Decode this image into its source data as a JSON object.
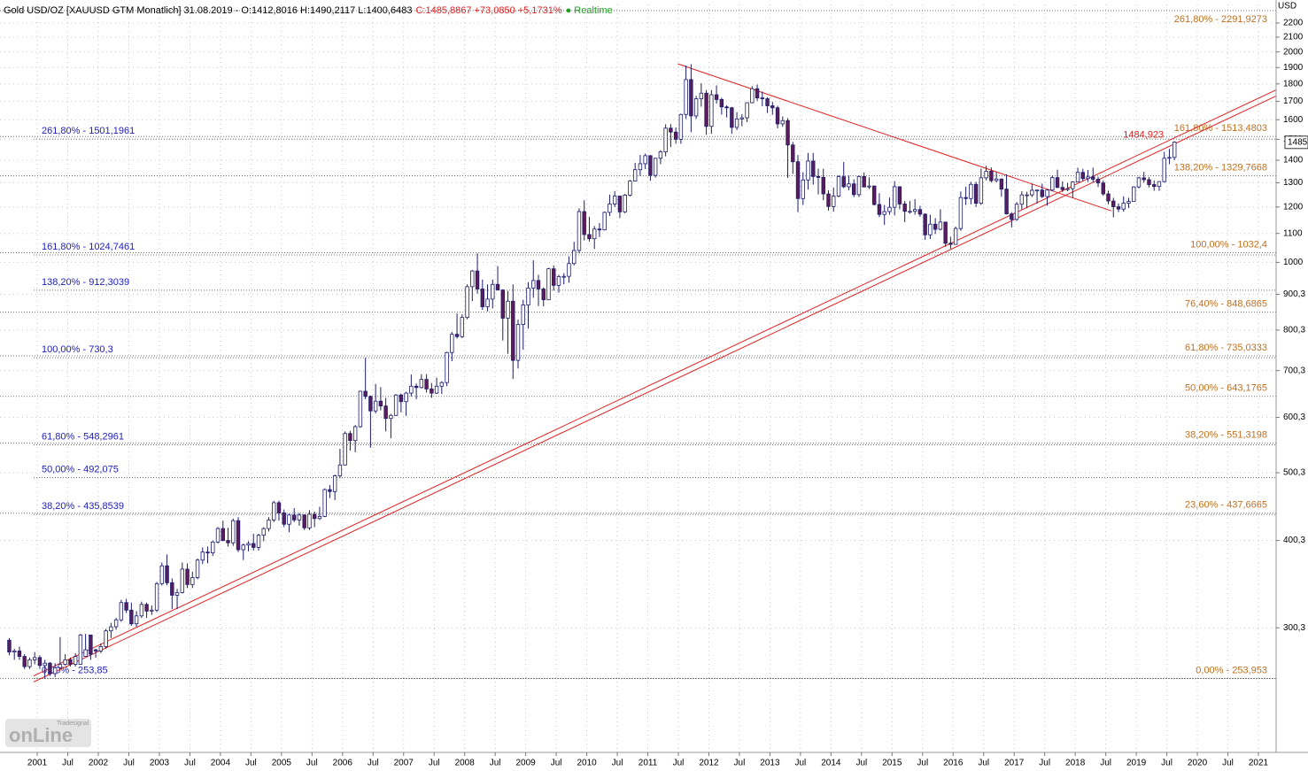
{
  "chart_data": {
    "type": "candlestick",
    "header": {
      "instrument": "Gold USD/OZ [XAUUSD GTM Monatlich] 31.08.2019 - O:1412,8016 H:1490,2117 L:1400,6483",
      "change": "C:1485,8867 +73,0850 +5,1731%",
      "status": "Realtime"
    },
    "y_axis_label": "USD",
    "logo": {
      "brand": "Tradesignal",
      "name": "onLine"
    },
    "log_scale": true,
    "grid": true,
    "up_color": "#ffffff",
    "down_color": "#5c1c5c",
    "wick_color": "#1c1c6c",
    "fib_left_color": "#2020c0",
    "fib_right_color": "#c07020",
    "trend_color": "#e02020",
    "ylim": [
      199,
      2339
    ],
    "yticks": [
      {
        "value": 300,
        "label": "300,3"
      },
      {
        "value": 400,
        "label": "400,3"
      },
      {
        "value": 500,
        "label": "500,3"
      },
      {
        "value": 600,
        "label": "600,3"
      },
      {
        "value": 700,
        "label": "700,3"
      },
      {
        "value": 800,
        "label": "800,3"
      },
      {
        "value": 900,
        "label": "900,3"
      },
      1000,
      1100,
      1200,
      1300,
      1400,
      1500,
      1600,
      1700,
      1800,
      1900,
      2000,
      2100,
      2200
    ],
    "xlim": [
      2000.39,
      2021.29
    ],
    "xticks": [
      2001,
      {
        "value": 2001.5,
        "label": "Jul"
      },
      2002,
      {
        "value": 2002.5,
        "label": "Jul"
      },
      2003,
      {
        "value": 2003.5,
        "label": "Jul"
      },
      2004,
      {
        "value": 2004.5,
        "label": "Jul"
      },
      2005,
      {
        "value": 2005.5,
        "label": "Jul"
      },
      2006,
      {
        "value": 2006.5,
        "label": "Jul"
      },
      2007,
      {
        "value": 2007.5,
        "label": "Jul"
      },
      2008,
      {
        "value": 2008.5,
        "label": "Jul"
      },
      2009,
      {
        "value": 2009.5,
        "label": "Jul"
      },
      2010,
      {
        "value": 2010.5,
        "label": "Jul"
      },
      2011,
      {
        "value": 2011.5,
        "label": "Jul"
      },
      2012,
      {
        "value": 2012.5,
        "label": "Jul"
      },
      2013,
      {
        "value": 2013.5,
        "label": "Jul"
      },
      2014,
      {
        "value": 2014.5,
        "label": "Jul"
      },
      2015,
      {
        "value": 2015.5,
        "label": "Jul"
      },
      2016,
      {
        "value": 2016.5,
        "label": "Jul"
      },
      2017,
      {
        "value": 2017.5,
        "label": "Jul"
      },
      2018,
      {
        "value": 2018.5,
        "label": "Jul"
      },
      2019,
      {
        "value": 2019.5,
        "label": "Jul"
      },
      2020,
      {
        "value": 2020.5,
        "label": "Jul"
      },
      2021
    ],
    "x": [
      "2000-07",
      "2000-08",
      "2000-09",
      "2000-10",
      "2000-11",
      "2000-12",
      "2001-01",
      "2001-02",
      "2001-03",
      "2001-04",
      "2001-05",
      "2001-06",
      "2001-07",
      "2001-08",
      "2001-09",
      "2001-10",
      "2001-11",
      "2001-12",
      "2002-01",
      "2002-02",
      "2002-03",
      "2002-04",
      "2002-05",
      "2002-06",
      "2002-07",
      "2002-08",
      "2002-09",
      "2002-10",
      "2002-11",
      "2002-12",
      "2003-01",
      "2003-02",
      "2003-03",
      "2003-04",
      "2003-05",
      "2003-06",
      "2003-07",
      "2003-08",
      "2003-09",
      "2003-10",
      "2003-11",
      "2003-12",
      "2004-01",
      "2004-02",
      "2004-03",
      "2004-04",
      "2004-05",
      "2004-06",
      "2004-07",
      "2004-08",
      "2004-09",
      "2004-10",
      "2004-11",
      "2004-12",
      "2005-01",
      "2005-02",
      "2005-03",
      "2005-04",
      "2005-05",
      "2005-06",
      "2005-07",
      "2005-08",
      "2005-09",
      "2005-10",
      "2005-11",
      "2005-12",
      "2006-01",
      "2006-02",
      "2006-03",
      "2006-04",
      "2006-05",
      "2006-06",
      "2006-07",
      "2006-08",
      "2006-09",
      "2006-10",
      "2006-11",
      "2006-12",
      "2007-01",
      "2007-02",
      "2007-03",
      "2007-04",
      "2007-05",
      "2007-06",
      "2007-07",
      "2007-08",
      "2007-09",
      "2007-10",
      "2007-11",
      "2007-12",
      "2008-01",
      "2008-02",
      "2008-03",
      "2008-04",
      "2008-05",
      "2008-06",
      "2008-07",
      "2008-08",
      "2008-09",
      "2008-10",
      "2008-11",
      "2008-12",
      "2009-01",
      "2009-02",
      "2009-03",
      "2009-04",
      "2009-05",
      "2009-06",
      "2009-07",
      "2009-08",
      "2009-09",
      "2009-10",
      "2009-11",
      "2009-12",
      "2010-01",
      "2010-02",
      "2010-03",
      "2010-04",
      "2010-05",
      "2010-06",
      "2010-07",
      "2010-08",
      "2010-09",
      "2010-10",
      "2010-11",
      "2010-12",
      "2011-01",
      "2011-02",
      "2011-03",
      "2011-04",
      "2011-05",
      "2011-06",
      "2011-07",
      "2011-08",
      "2011-09",
      "2011-10",
      "2011-11",
      "2011-12",
      "2012-01",
      "2012-02",
      "2012-03",
      "2012-04",
      "2012-05",
      "2012-06",
      "2012-07",
      "2012-08",
      "2012-09",
      "2012-10",
      "2012-11",
      "2012-12",
      "2013-01",
      "2013-02",
      "2013-03",
      "2013-04",
      "2013-05",
      "2013-06",
      "2013-07",
      "2013-08",
      "2013-09",
      "2013-10",
      "2013-11",
      "2013-12",
      "2014-01",
      "2014-02",
      "2014-03",
      "2014-04",
      "2014-05",
      "2014-06",
      "2014-07",
      "2014-08",
      "2014-09",
      "2014-10",
      "2014-11",
      "2014-12",
      "2015-01",
      "2015-02",
      "2015-03",
      "2015-04",
      "2015-05",
      "2015-06",
      "2015-07",
      "2015-08",
      "2015-09",
      "2015-10",
      "2015-11",
      "2015-12",
      "2016-01",
      "2016-02",
      "2016-03",
      "2016-04",
      "2016-05",
      "2016-06",
      "2016-07",
      "2016-08",
      "2016-09",
      "2016-10",
      "2016-11",
      "2016-12",
      "2017-01",
      "2017-02",
      "2017-03",
      "2017-04",
      "2017-05",
      "2017-06",
      "2017-07",
      "2017-08",
      "2017-09",
      "2017-10",
      "2017-11",
      "2017-12",
      "2018-01",
      "2018-02",
      "2018-03",
      "2018-04",
      "2018-05",
      "2018-06",
      "2018-07",
      "2018-08",
      "2018-09",
      "2018-10",
      "2018-11",
      "2018-12",
      "2019-01",
      "2019-02",
      "2019-03",
      "2019-04",
      "2019-05",
      "2019-06",
      "2019-07",
      "2019-08"
    ],
    "open": [
      288,
      277,
      278,
      273,
      264,
      270,
      272,
      265,
      267,
      258,
      263,
      266,
      270,
      266,
      266,
      273,
      293,
      279,
      278,
      282,
      297,
      301,
      308,
      326,
      318,
      304,
      312,
      324,
      317,
      318,
      347,
      368,
      348,
      334,
      337,
      364,
      346,
      354,
      375,
      385,
      384,
      398,
      416,
      400,
      397,
      427,
      388,
      394,
      396,
      391,
      407,
      416,
      428,
      453,
      438,
      422,
      435,
      428,
      435,
      417,
      436,
      430,
      433,
      473,
      470,
      495,
      513,
      569,
      556,
      582,
      654,
      643,
      613,
      633,
      623,
      598,
      604,
      646,
      632,
      650,
      665,
      662,
      680,
      659,
      650,
      665,
      673,
      743,
      789,
      783,
      834,
      923,
      972,
      916,
      864,
      886,
      930,
      913,
      832,
      880,
      724,
      815,
      869,
      919,
      942,
      916,
      884,
      979,
      927,
      954,
      955,
      996,
      1040,
      1182,
      1096,
      1081,
      1116,
      1113,
      1179,
      1212,
      1244,
      1181,
      1248,
      1307,
      1357,
      1384,
      1421,
      1332,
      1409,
      1439,
      1556,
      1536,
      1500,
      1628,
      1826,
      1620,
      1714,
      1746,
      1565,
      1737,
      1710,
      1669,
      1664,
      1560,
      1604,
      1610,
      1692,
      1772,
      1719,
      1714,
      1675,
      1664,
      1578,
      1595,
      1472,
      1393,
      1234,
      1312,
      1396,
      1327,
      1323,
      1253,
      1202,
      1244,
      1326,
      1283,
      1295,
      1250,
      1327,
      1282,
      1286,
      1210,
      1171,
      1182,
      1199,
      1283,
      1212,
      1183,
      1183,
      1190,
      1172,
      1095,
      1134,
      1115,
      1142,
      1065,
      1061,
      1118,
      1238,
      1234,
      1293,
      1215,
      1321,
      1350,
      1309,
      1316,
      1273,
      1173,
      1152,
      1211,
      1249,
      1249,
      1268,
      1269,
      1242,
      1269,
      1322,
      1280,
      1271,
      1275,
      1303,
      1345,
      1318,
      1325,
      1315,
      1299,
      1253,
      1224,
      1201,
      1192,
      1215,
      1222,
      1282,
      1321,
      1313,
      1292,
      1284,
      1305,
      1409,
      1412.8
    ],
    "high": [
      290,
      280,
      282,
      275,
      272,
      277,
      274,
      270,
      268,
      267,
      291,
      275,
      272,
      276,
      294,
      294,
      280,
      280,
      285,
      299,
      305,
      310,
      329,
      330,
      326,
      317,
      327,
      326,
      323,
      349,
      372,
      382,
      353,
      341,
      372,
      371,
      361,
      377,
      391,
      392,
      400,
      418,
      427,
      417,
      430,
      432,
      396,
      399,
      409,
      409,
      418,
      432,
      456,
      456,
      443,
      437,
      445,
      438,
      436,
      442,
      440,
      447,
      475,
      480,
      497,
      541,
      573,
      574,
      585,
      655,
      730,
      645,
      670,
      663,
      640,
      607,
      648,
      649,
      653,
      691,
      671,
      692,
      692,
      672,
      684,
      676,
      745,
      795,
      845,
      843,
      930,
      975,
      1030,
      945,
      930,
      945,
      988,
      915,
      910,
      930,
      828,
      884,
      937,
      1007,
      960,
      921,
      982,
      990,
      960,
      965,
      1020,
      1070,
      1195,
      1227,
      1162,
      1127,
      1138,
      1182,
      1250,
      1265,
      1245,
      1253,
      1312,
      1388,
      1424,
      1431,
      1424,
      1411,
      1447,
      1576,
      1577,
      1560,
      1632,
      1913,
      1921,
      1730,
      1804,
      1764,
      1764,
      1791,
      1720,
      1677,
      1669,
      1640,
      1630,
      1693,
      1787,
      1796,
      1755,
      1723,
      1697,
      1675,
      1617,
      1608,
      1487,
      1424,
      1346,
      1434,
      1434,
      1362,
      1361,
      1268,
      1280,
      1332,
      1392,
      1331,
      1315,
      1332,
      1345,
      1323,
      1288,
      1256,
      1208,
      1238,
      1307,
      1283,
      1224,
      1224,
      1232,
      1205,
      1175,
      1170,
      1157,
      1191,
      1143,
      1088,
      1125,
      1263,
      1283,
      1304,
      1304,
      1362,
      1375,
      1367,
      1345,
      1318,
      1337,
      1180,
      1220,
      1264,
      1262,
      1295,
      1270,
      1296,
      1272,
      1331,
      1357,
      1306,
      1299,
      1307,
      1366,
      1361,
      1356,
      1366,
      1326,
      1310,
      1266,
      1237,
      1214,
      1243,
      1237,
      1285,
      1326,
      1347,
      1324,
      1310,
      1306,
      1439,
      1453,
      1490.2
    ],
    "low": [
      274,
      270,
      270,
      262,
      262,
      266,
      262,
      254,
      256,
      255,
      262,
      265,
      264,
      264,
      271,
      277,
      270,
      272,
      276,
      280,
      290,
      298,
      306,
      315,
      302,
      301,
      310,
      310,
      313,
      316,
      345,
      345,
      319,
      319,
      336,
      342,
      342,
      352,
      370,
      371,
      380,
      396,
      399,
      392,
      393,
      385,
      375,
      386,
      387,
      387,
      399,
      412,
      425,
      427,
      418,
      411,
      425,
      420,
      414,
      414,
      418,
      428,
      432,
      460,
      457,
      491,
      512,
      538,
      535,
      580,
      637,
      543,
      608,
      614,
      573,
      560,
      603,
      610,
      603,
      643,
      637,
      660,
      651,
      640,
      648,
      648,
      665,
      722,
      778,
      779,
      829,
      880,
      902,
      855,
      851,
      859,
      912,
      773,
      740,
      681,
      705,
      750,
      804,
      890,
      866,
      865,
      883,
      911,
      905,
      930,
      935,
      990,
      1030,
      1075,
      1071,
      1045,
      1087,
      1111,
      1165,
      1200,
      1157,
      1176,
      1243,
      1305,
      1330,
      1360,
      1308,
      1322,
      1382,
      1418,
      1462,
      1478,
      1478,
      1604,
      1535,
      1604,
      1670,
      1522,
      1527,
      1687,
      1627,
      1612,
      1527,
      1546,
      1565,
      1587,
      1689,
      1702,
      1672,
      1636,
      1626,
      1555,
      1563,
      1321,
      1338,
      1180,
      1208,
      1271,
      1292,
      1251,
      1227,
      1186,
      1182,
      1239,
      1277,
      1268,
      1240,
      1240,
      1280,
      1273,
      1206,
      1161,
      1131,
      1170,
      1167,
      1191,
      1142,
      1174,
      1170,
      1162,
      1077,
      1080,
      1098,
      1111,
      1053,
      1046,
      1060,
      1110,
      1208,
      1211,
      1200,
      1208,
      1310,
      1301,
      1302,
      1241,
      1171,
      1122,
      1146,
      1191,
      1195,
      1240,
      1214,
      1236,
      1205,
      1264,
      1277,
      1261,
      1264,
      1236,
      1302,
      1307,
      1303,
      1302,
      1282,
      1245,
      1211,
      1160,
      1180,
      1182,
      1196,
      1221,
      1276,
      1300,
      1280,
      1266,
      1266,
      1301,
      1382,
      1400.6
    ],
    "close": [
      277,
      278,
      273,
      264,
      270,
      272,
      265,
      267,
      258,
      263,
      266,
      270,
      266,
      273,
      293,
      279,
      275,
      278,
      282,
      297,
      301,
      308,
      326,
      318,
      304,
      312,
      324,
      317,
      318,
      347,
      368,
      348,
      334,
      337,
      364,
      346,
      354,
      375,
      385,
      384,
      398,
      416,
      400,
      397,
      427,
      388,
      394,
      396,
      391,
      407,
      416,
      428,
      453,
      438,
      422,
      435,
      428,
      435,
      417,
      436,
      430,
      433,
      473,
      470,
      495,
      513,
      569,
      556,
      582,
      654,
      643,
      613,
      633,
      623,
      598,
      604,
      646,
      632,
      650,
      665,
      662,
      680,
      659,
      650,
      665,
      673,
      743,
      789,
      783,
      834,
      923,
      972,
      916,
      864,
      886,
      930,
      913,
      832,
      880,
      724,
      815,
      869,
      919,
      942,
      916,
      884,
      979,
      927,
      954,
      955,
      996,
      1040,
      1182,
      1096,
      1081,
      1116,
      1113,
      1179,
      1212,
      1244,
      1181,
      1248,
      1307,
      1357,
      1384,
      1421,
      1332,
      1409,
      1439,
      1556,
      1536,
      1500,
      1628,
      1826,
      1620,
      1714,
      1746,
      1565,
      1737,
      1710,
      1669,
      1664,
      1560,
      1604,
      1610,
      1692,
      1772,
      1719,
      1714,
      1675,
      1664,
      1578,
      1595,
      1472,
      1393,
      1234,
      1312,
      1396,
      1327,
      1323,
      1253,
      1202,
      1244,
      1326,
      1283,
      1295,
      1250,
      1327,
      1282,
      1286,
      1210,
      1171,
      1182,
      1199,
      1283,
      1212,
      1183,
      1183,
      1190,
      1172,
      1095,
      1134,
      1115,
      1142,
      1065,
      1061,
      1118,
      1238,
      1234,
      1293,
      1215,
      1321,
      1350,
      1309,
      1316,
      1273,
      1173,
      1152,
      1211,
      1249,
      1249,
      1268,
      1269,
      1242,
      1269,
      1322,
      1280,
      1271,
      1275,
      1303,
      1345,
      1318,
      1325,
      1315,
      1299,
      1253,
      1224,
      1201,
      1192,
      1215,
      1222,
      1282,
      1321,
      1313,
      1292,
      1284,
      1305,
      1409,
      1413,
      1485.9
    ],
    "fib_left": [
      {
        "value": 1501.1961,
        "label": "261,80% - 1501,1961"
      },
      {
        "value": 1024.7461,
        "label": "161,80% - 1024,7461"
      },
      {
        "value": 912.3039,
        "label": "138,20% - 912,3039"
      },
      {
        "value": 730.3,
        "label": "100,00% - 730,3"
      },
      {
        "value": 548.2961,
        "label": "61,80% - 548,2961"
      },
      {
        "value": 492.075,
        "label": "50,00% - 492,075"
      },
      {
        "value": 435.8539,
        "label": "38,20% - 435,8539"
      },
      {
        "value": 253.85,
        "label": "0,00% - 253,85"
      }
    ],
    "fib_right": [
      {
        "value": 2291.9273,
        "label": "261,80% - 2291,9273"
      },
      {
        "value": 1513.4803,
        "label": "161,80% - 1513,4803"
      },
      {
        "value": 1329.7668,
        "label": "138,20% - 1329,7668"
      },
      {
        "value": 1032.4,
        "label": "100,00% - 1032,4"
      },
      {
        "value": 848.6865,
        "label": "76,40% - 848,6865"
      },
      {
        "value": 735.0333,
        "label": "61,80% - 735,0333"
      },
      {
        "value": 643.1765,
        "label": "50,00% - 643,1765"
      },
      {
        "value": 551.3198,
        "label": "38,20% - 551,3198"
      },
      {
        "value": 437.6665,
        "label": "23,60% - 437,6665"
      },
      {
        "value": 253.953,
        "label": "0,00% - 253,953"
      }
    ],
    "trend_lines": [
      {
        "from": [
          2000.94,
          256
        ],
        "to": [
          2021.29,
          1765
        ]
      },
      {
        "from": [
          2000.94,
          251
        ],
        "to": [
          2021.29,
          1730
        ]
      },
      {
        "from": [
          2011.49,
          1923
        ],
        "to": [
          2018.59,
          1185
        ]
      }
    ],
    "annotation": {
      "label": "1484,923",
      "value": 1484.923
    },
    "last_price": 1485
  }
}
